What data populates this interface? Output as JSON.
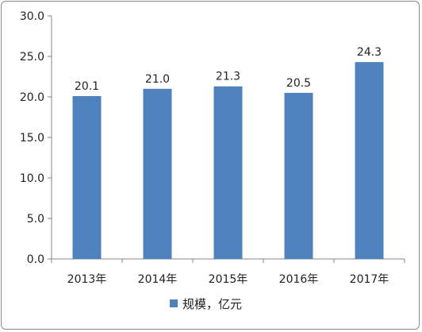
{
  "chart_data": {
    "type": "bar",
    "categories": [
      "2013年",
      "2014年",
      "2015年",
      "2016年",
      "2017年"
    ],
    "series": [
      {
        "name": "规模，亿元",
        "values": [
          20.1,
          21.0,
          21.3,
          20.5,
          24.3
        ],
        "value_labels": [
          "20.1",
          "21.0",
          "21.3",
          "20.5",
          "24.3"
        ],
        "color": "#4f81bd"
      }
    ],
    "yticks": [
      "0.0",
      "5.0",
      "10.0",
      "15.0",
      "20.0",
      "25.0",
      "30.0"
    ],
    "ylim": [
      0,
      30
    ],
    "title": "",
    "xlabel": "",
    "ylabel": "",
    "legend_position": "bottom",
    "grid": false
  }
}
